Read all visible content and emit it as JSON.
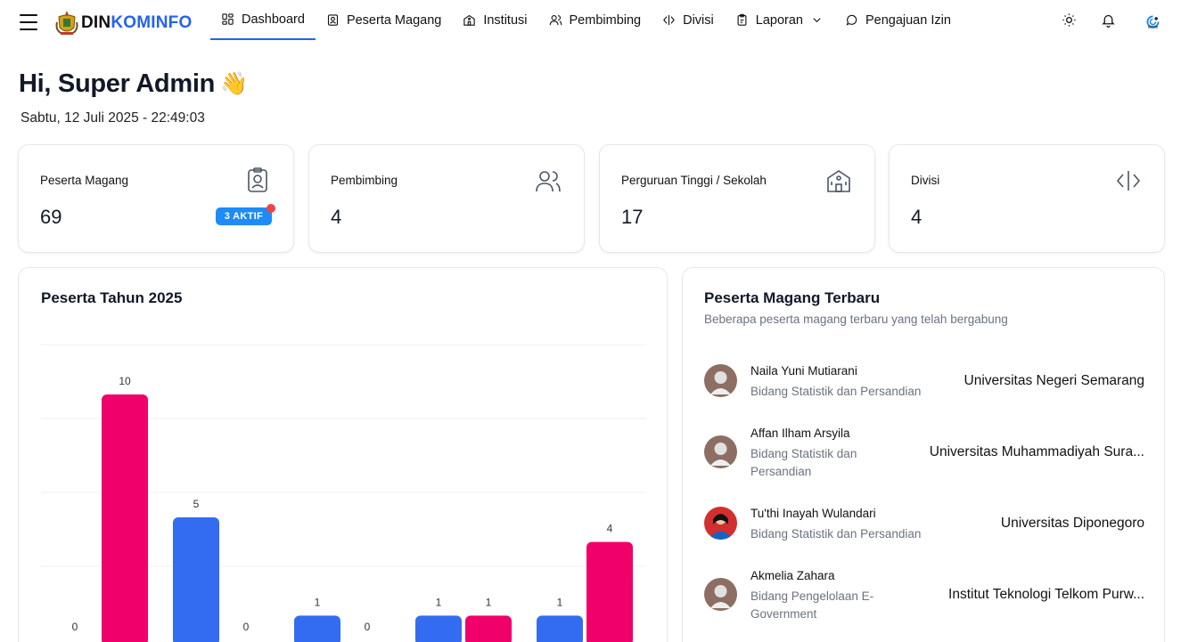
{
  "brand": {
    "part1": "DIN",
    "part2": "KOMINFO"
  },
  "nav": [
    {
      "label": "Dashboard",
      "icon": "dashboard-icon",
      "active": true
    },
    {
      "label": "Peserta Magang",
      "icon": "id-card-icon"
    },
    {
      "label": "Institusi",
      "icon": "building-icon"
    },
    {
      "label": "Pembimbing",
      "icon": "users-icon"
    },
    {
      "label": "Divisi",
      "icon": "code-icon"
    },
    {
      "label": "Laporan",
      "icon": "clipboard-icon",
      "dropdown": true
    },
    {
      "label": "Pengajuan Izin",
      "icon": "chat-icon"
    }
  ],
  "greeting": {
    "text": "Hi, Super Admin",
    "emoji": "👋"
  },
  "datetime": "Sabtu, 12 Juli 2025 - 22:49:03",
  "stats": [
    {
      "label": "Peserta Magang",
      "value": "69",
      "icon": "id-card-icon",
      "badge": "3 AKTIF"
    },
    {
      "label": "Pembimbing",
      "value": "4",
      "icon": "users-icon"
    },
    {
      "label": "Perguruan Tinggi / Sekolah",
      "value": "17",
      "icon": "building-icon"
    },
    {
      "label": "Divisi",
      "value": "4",
      "icon": "code-icon"
    }
  ],
  "chart_title": "Peserta Tahun 2025",
  "chart_data": {
    "type": "bar",
    "title": "Peserta Tahun 2025",
    "colors": [
      "#f0006a",
      "#336cf0"
    ],
    "groups": [
      [
        {
          "value": 0,
          "color": 0
        },
        {
          "value": 10,
          "color": 0
        }
      ],
      [
        {
          "value": 5,
          "color": 1
        },
        {
          "value": 0,
          "color": 1
        }
      ],
      [
        {
          "value": 1,
          "color": 1
        },
        {
          "value": 0,
          "color": 1
        }
      ],
      [
        {
          "value": 1,
          "color": 1
        },
        {
          "value": 1,
          "color": 0
        }
      ],
      [
        {
          "value": 1,
          "color": 1
        },
        {
          "value": 4,
          "color": 0
        }
      ]
    ],
    "ylim": [
      0,
      10
    ]
  },
  "recent": {
    "title": "Peserta Magang Terbaru",
    "subtitle": "Beberapa peserta magang terbaru yang telah bergabung",
    "items": [
      {
        "name": "Naila Yuni Mutiarani",
        "division": "Bidang Statistik dan Persandian",
        "institution": "Universitas Negeri Semarang",
        "avatar": "placeholder"
      },
      {
        "name": "Affan Ilham Arsyila",
        "division": "Bidang Statistik dan Persandian",
        "institution": "Universitas Muhammadiyah Sura...",
        "avatar": "placeholder"
      },
      {
        "name": "Tu'thi Inayah Wulandari",
        "division": "Bidang Statistik dan Persandian",
        "institution": "Universitas Diponegoro",
        "avatar": "photo"
      },
      {
        "name": "Akmelia Zahara",
        "division": "Bidang Pengelolaan E-Government",
        "institution": "Institut Teknologi Telkom Purw...",
        "avatar": "placeholder"
      }
    ]
  }
}
